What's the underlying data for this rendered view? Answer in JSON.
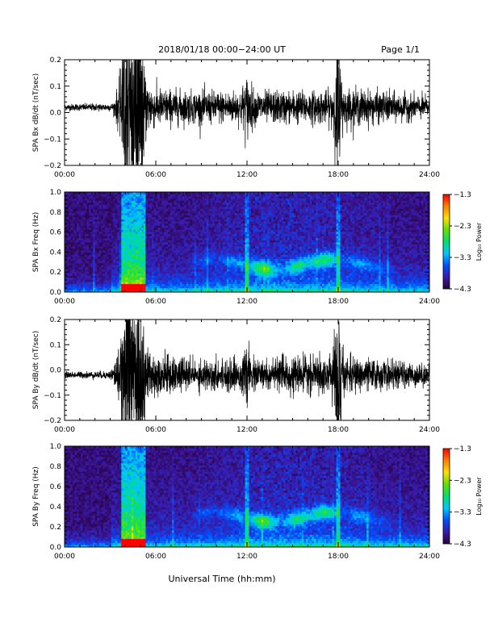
{
  "header": {
    "title": "2018/01/18  00:00−24:00 UT",
    "page": "Page 1/1"
  },
  "footer": {
    "xlabel": "Universal Time (hh:mm)"
  },
  "chart_data": [
    {
      "type": "line",
      "description": "Bx magnetic field derivative time series",
      "ylabel": "SPA Bx dB/dt (nT/sec)",
      "x_ticks": [
        "00:00",
        "06:00",
        "12:00",
        "18:00",
        "24:00"
      ],
      "x_range_hours": [
        0,
        24
      ],
      "y_ticks": [
        "0.2",
        "0.1",
        "0.0",
        "−0.1",
        "−0.2"
      ],
      "ylim": [
        -0.2,
        0.2
      ],
      "baseline": 0.02,
      "series": [
        {
          "envelope": [
            {
              "x": 0.0,
              "amp": 0.012
            },
            {
              "x": 3.2,
              "amp": 0.015
            },
            {
              "x": 3.5,
              "amp": 0.08
            },
            {
              "x": 4.0,
              "amp": 0.2
            },
            {
              "x": 5.0,
              "amp": 0.2
            },
            {
              "x": 5.5,
              "amp": 0.1
            },
            {
              "x": 6.0,
              "amp": 0.07
            },
            {
              "x": 8.0,
              "amp": 0.06
            },
            {
              "x": 11.5,
              "amp": 0.06
            },
            {
              "x": 12.0,
              "amp": 0.12
            },
            {
              "x": 12.5,
              "amp": 0.06
            },
            {
              "x": 17.5,
              "amp": 0.06
            },
            {
              "x": 18.0,
              "amp": 0.2
            },
            {
              "x": 18.4,
              "amp": 0.07
            },
            {
              "x": 24.0,
              "amp": 0.04
            }
          ]
        }
      ]
    },
    {
      "type": "heatmap",
      "description": "Bx spectrogram",
      "ylabel": "SPA Bx Freq (Hz)",
      "x_ticks": [
        "00:00",
        "06:00",
        "12:00",
        "18:00",
        "24:00"
      ],
      "x_range_hours": [
        0,
        24
      ],
      "y_ticks": [
        "1.0",
        "0.8",
        "0.6",
        "0.4",
        "0.2",
        "0.0"
      ],
      "ylim": [
        0,
        1.0
      ],
      "colorbar": {
        "label": "Log₁₀ Power",
        "ticks": [
          "−1.3",
          "−2.3",
          "−3.3",
          "−4.3"
        ],
        "range": [
          -4.3,
          -1.3
        ],
        "colors": [
          "#2a003a",
          "#3a1aa8",
          "#0050ff",
          "#00c8ff",
          "#00e070",
          "#60e000",
          "#ffe000",
          "#ff8000",
          "#ff0000"
        ]
      },
      "features": [
        {
          "name": "broadband burst",
          "x_start": 3.8,
          "x_end": 5.3,
          "f_max": 1.0,
          "peak_power": -1.3
        },
        {
          "name": "Pc1 band",
          "x_start": 8.0,
          "x_end": 22.0,
          "f_center": 0.28,
          "peak_power": -2.6
        },
        {
          "name": "spike",
          "x": 12.0,
          "f_max": 0.9
        },
        {
          "name": "spike",
          "x": 18.0,
          "f_max": 1.0
        }
      ]
    },
    {
      "type": "line",
      "description": "By magnetic field derivative time series",
      "ylabel": "SPA By dB/dt (nT/sec)",
      "x_ticks": [
        "00:00",
        "06:00",
        "12:00",
        "18:00",
        "24:00"
      ],
      "x_range_hours": [
        0,
        24
      ],
      "y_ticks": [
        "0.2",
        "0.1",
        "0.0",
        "−0.1",
        "−0.2"
      ],
      "ylim": [
        -0.2,
        0.2
      ],
      "baseline": -0.02,
      "series": [
        {
          "envelope": [
            {
              "x": 0.0,
              "amp": 0.012
            },
            {
              "x": 3.0,
              "amp": 0.015
            },
            {
              "x": 3.5,
              "amp": 0.09
            },
            {
              "x": 4.0,
              "amp": 0.2
            },
            {
              "x": 5.0,
              "amp": 0.2
            },
            {
              "x": 5.5,
              "amp": 0.11
            },
            {
              "x": 6.0,
              "amp": 0.08
            },
            {
              "x": 8.0,
              "amp": 0.06
            },
            {
              "x": 11.5,
              "amp": 0.06
            },
            {
              "x": 12.0,
              "amp": 0.1
            },
            {
              "x": 12.5,
              "amp": 0.06
            },
            {
              "x": 17.5,
              "amp": 0.07
            },
            {
              "x": 18.0,
              "amp": 0.2
            },
            {
              "x": 18.4,
              "amp": 0.07
            },
            {
              "x": 24.0,
              "amp": 0.04
            }
          ]
        }
      ]
    },
    {
      "type": "heatmap",
      "description": "By spectrogram",
      "ylabel": "SPA By Freq (Hz)",
      "x_ticks": [
        "00:00",
        "06:00",
        "12:00",
        "18:00",
        "24:00"
      ],
      "x_range_hours": [
        0,
        24
      ],
      "y_ticks": [
        "1.0",
        "0.8",
        "0.6",
        "0.4",
        "0.2",
        "0.0"
      ],
      "ylim": [
        0,
        1.0
      ],
      "colorbar": {
        "label": "Log₁₀ Power",
        "ticks": [
          "−1.3",
          "−2.3",
          "−3.3",
          "−4.3"
        ],
        "range": [
          -4.3,
          -1.3
        ],
        "colors": [
          "#2a003a",
          "#3a1aa8",
          "#0050ff",
          "#00c8ff",
          "#00e070",
          "#60e000",
          "#ffe000",
          "#ff8000",
          "#ff0000"
        ]
      },
      "features": [
        {
          "name": "broadband burst",
          "x_start": 3.8,
          "x_end": 5.3,
          "f_max": 1.0,
          "peak_power": -1.3
        },
        {
          "name": "Pc1 band",
          "x_start": 8.0,
          "x_end": 22.0,
          "f_center": 0.3,
          "peak_power": -2.6
        },
        {
          "name": "spike",
          "x": 12.0,
          "f_max": 0.9
        },
        {
          "name": "spike",
          "x": 18.0,
          "f_max": 1.0
        }
      ]
    }
  ]
}
